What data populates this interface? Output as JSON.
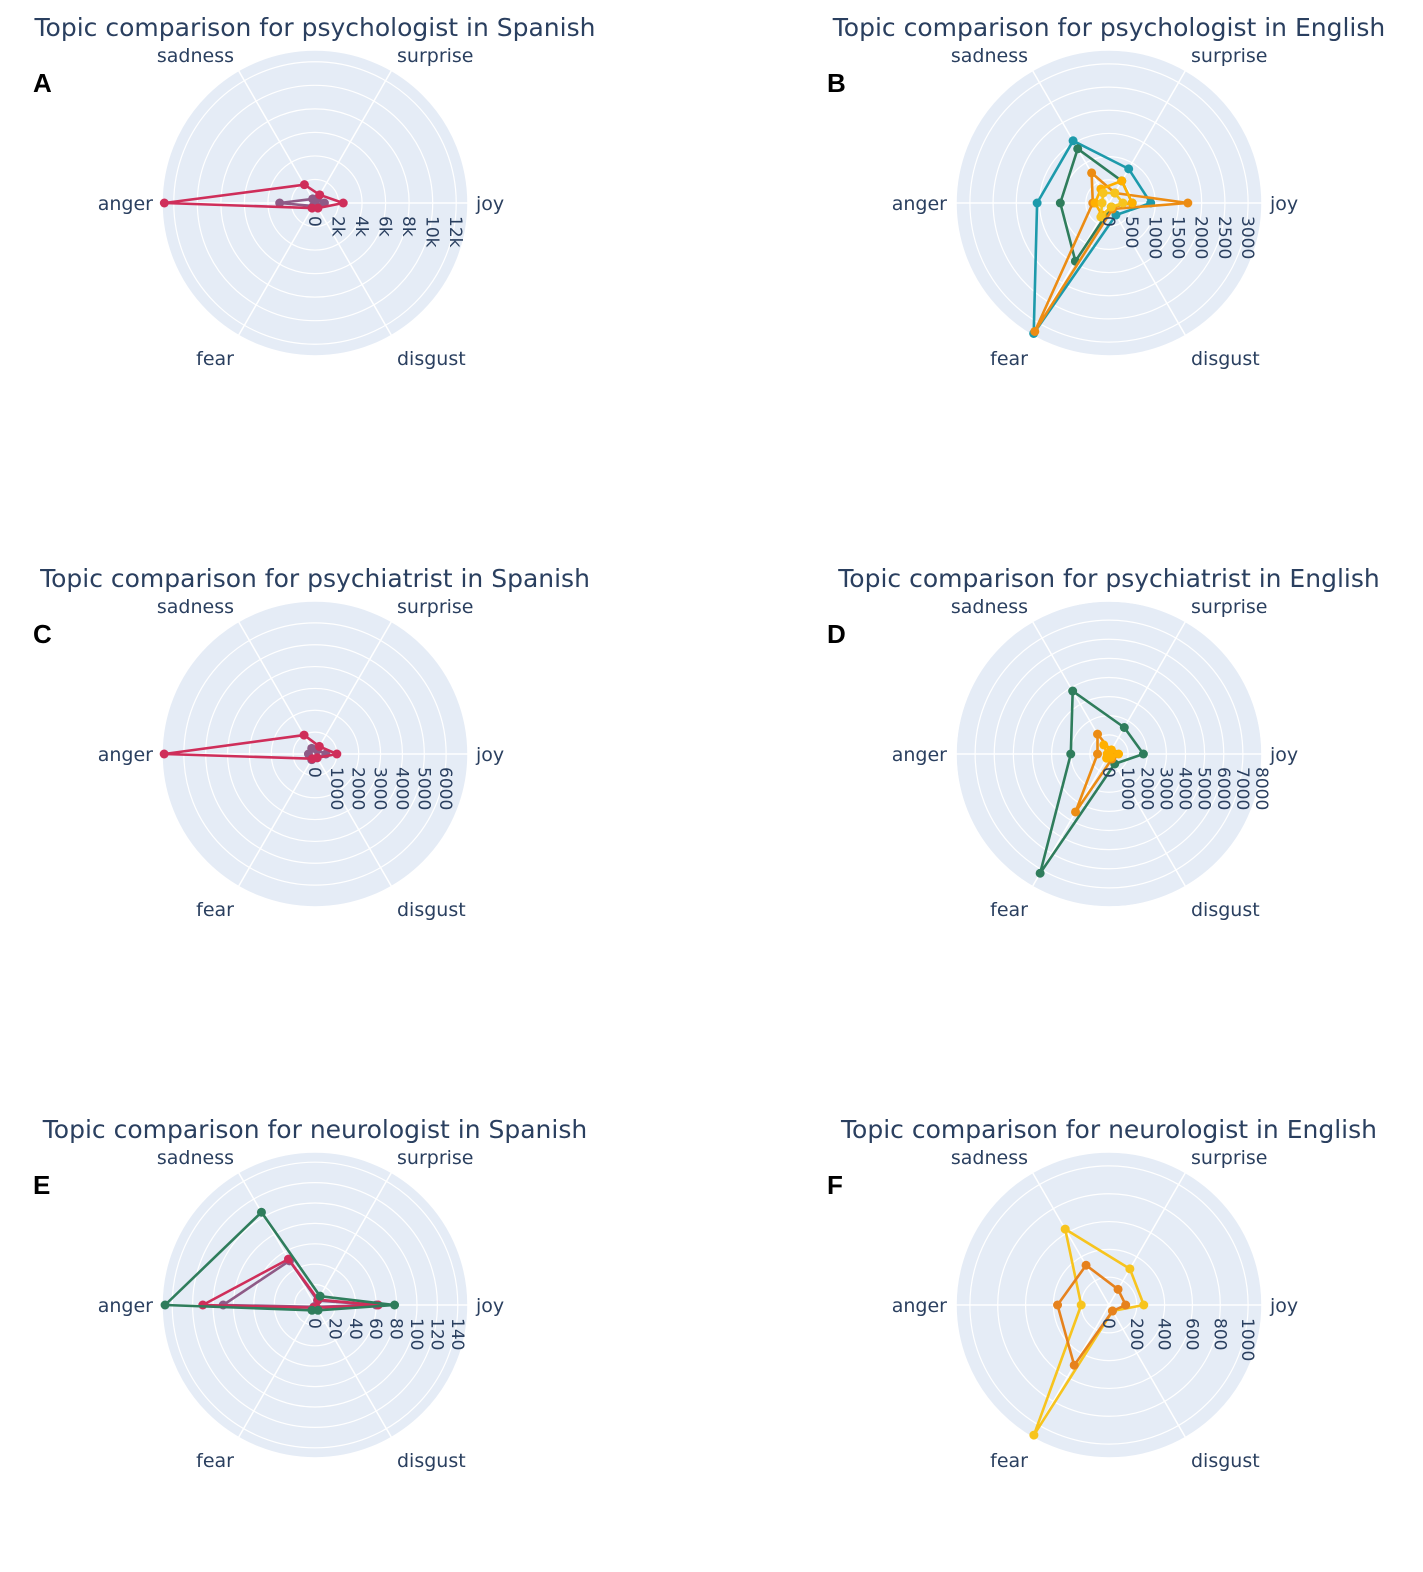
{
  "colors": {
    "background": "#e5ecf6",
    "grid": "#ffffff",
    "text": "#2a3f5f",
    "crimson": "#cf2e5a",
    "mauve": "#8e5a86",
    "teal": "#1d9aab",
    "green": "#2f7d5c",
    "orange": "#ec8c13",
    "amber": "#ffb000",
    "gold": "#f7c41e",
    "dark_orange": "#e6821e"
  },
  "chart_data": [
    {
      "type": "radar",
      "panel_label": "A",
      "title": "Topic comparison for psychologist in Spanish",
      "axes": [
        "joy",
        "surprise",
        "sadness",
        "anger",
        "fear",
        "disgust"
      ],
      "radial_range": [
        0,
        13000
      ],
      "radial_ticks": [
        0,
        2000,
        4000,
        6000,
        8000,
        10000,
        12000
      ],
      "radial_tick_labels": [
        "0",
        "2k",
        "4k",
        "6k",
        "8k",
        "10k",
        "12k"
      ],
      "series": [
        {
          "color": "mauve",
          "values": [
            800,
            400,
            400,
            3000,
            300,
            300
          ]
        },
        {
          "color": "crimson",
          "values": [
            2400,
            800,
            1800,
            12800,
            500,
            500
          ]
        }
      ]
    },
    {
      "type": "radar",
      "panel_label": "B",
      "title": "Topic comparison for psychologist in English",
      "axes": [
        "joy",
        "surprise",
        "sadness",
        "anger",
        "fear",
        "disgust"
      ],
      "radial_range": [
        0,
        3300
      ],
      "radial_ticks": [
        0,
        500,
        1000,
        1500,
        2000,
        2500,
        3000
      ],
      "radial_tick_labels": [
        "0",
        "500",
        "1000",
        "1500",
        "2000",
        "2500",
        "3000"
      ],
      "series": [
        {
          "color": "teal",
          "values": [
            900,
            850,
            1550,
            1550,
            3250,
            300
          ]
        },
        {
          "color": "green",
          "values": [
            500,
            550,
            1350,
            1050,
            1450,
            100
          ]
        },
        {
          "color": "orange",
          "values": [
            1700,
            250,
            750,
            350,
            3200,
            150
          ]
        },
        {
          "color": "amber",
          "values": [
            500,
            550,
            350,
            300,
            300,
            100
          ]
        },
        {
          "color": "gold",
          "values": [
            300,
            250,
            250,
            150,
            350,
            100
          ]
        }
      ]
    },
    {
      "type": "radar",
      "panel_label": "C",
      "title": "Topic comparison for psychiatrist in Spanish",
      "axes": [
        "joy",
        "surprise",
        "sadness",
        "anger",
        "fear",
        "disgust"
      ],
      "radial_range": [
        0,
        7000
      ],
      "radial_ticks": [
        0,
        1000,
        2000,
        3000,
        4000,
        5000,
        6000
      ],
      "radial_tick_labels": [
        "0",
        "1000",
        "2000",
        "3000",
        "4000",
        "5000",
        "6000"
      ],
      "series": [
        {
          "color": "mauve",
          "values": [
            500,
            200,
            300,
            300,
            300,
            200
          ]
        },
        {
          "color": "crimson",
          "values": [
            1000,
            400,
            1000,
            6900,
            250,
            200
          ]
        }
      ]
    },
    {
      "type": "radar",
      "panel_label": "D",
      "title": "Topic comparison for psychiatrist in English",
      "axes": [
        "joy",
        "surprise",
        "sadness",
        "anger",
        "fear",
        "disgust"
      ],
      "radial_range": [
        0,
        8000
      ],
      "radial_ticks": [
        0,
        1000,
        2000,
        3000,
        4000,
        5000,
        6000,
        7000,
        8000
      ],
      "radial_tick_labels": [
        "0",
        "1000",
        "2000",
        "3000",
        "4000",
        "5000",
        "6000",
        "7000",
        "8000"
      ],
      "series": [
        {
          "color": "green",
          "values": [
            1800,
            1600,
            3800,
            2000,
            7200,
            600
          ]
        },
        {
          "color": "orange",
          "values": [
            300,
            200,
            1200,
            600,
            3500,
            300
          ]
        },
        {
          "color": "amber",
          "values": [
            500,
            250,
            550,
            100,
            250,
            200
          ]
        }
      ]
    },
    {
      "type": "radar",
      "panel_label": "E",
      "title": "Topic comparison for neurologist in Spanish",
      "axes": [
        "joy",
        "surprise",
        "sadness",
        "anger",
        "fear",
        "disgust"
      ],
      "radial_range": [
        0,
        150
      ],
      "radial_ticks": [
        0,
        20,
        40,
        60,
        80,
        100,
        120,
        140
      ],
      "radial_tick_labels": [
        "0",
        "20",
        "40",
        "60",
        "80",
        "100",
        "120",
        "140"
      ],
      "series": [
        {
          "color": "mauve",
          "values": [
            60,
            5,
            50,
            90,
            2,
            2
          ]
        },
        {
          "color": "crimson",
          "values": [
            62,
            6,
            52,
            110,
            3,
            3
          ]
        },
        {
          "color": "green",
          "values": [
            78,
            10,
            105,
            147,
            6,
            6
          ]
        }
      ]
    },
    {
      "type": "radar",
      "panel_label": "F",
      "title": "Topic comparison for neurologist in English",
      "axes": [
        "joy",
        "surprise",
        "sadness",
        "anger",
        "fear",
        "disgust"
      ],
      "radial_range": [
        0,
        1100
      ],
      "radial_ticks": [
        0,
        200,
        400,
        600,
        800,
        1000
      ],
      "radial_tick_labels": [
        "0",
        "200",
        "400",
        "600",
        "800",
        "1000"
      ],
      "series": [
        {
          "color": "gold",
          "values": [
            250,
            300,
            630,
            200,
            1080,
            50
          ]
        },
        {
          "color": "dark_orange",
          "values": [
            120,
            130,
            330,
            370,
            500,
            50
          ]
        }
      ]
    }
  ]
}
